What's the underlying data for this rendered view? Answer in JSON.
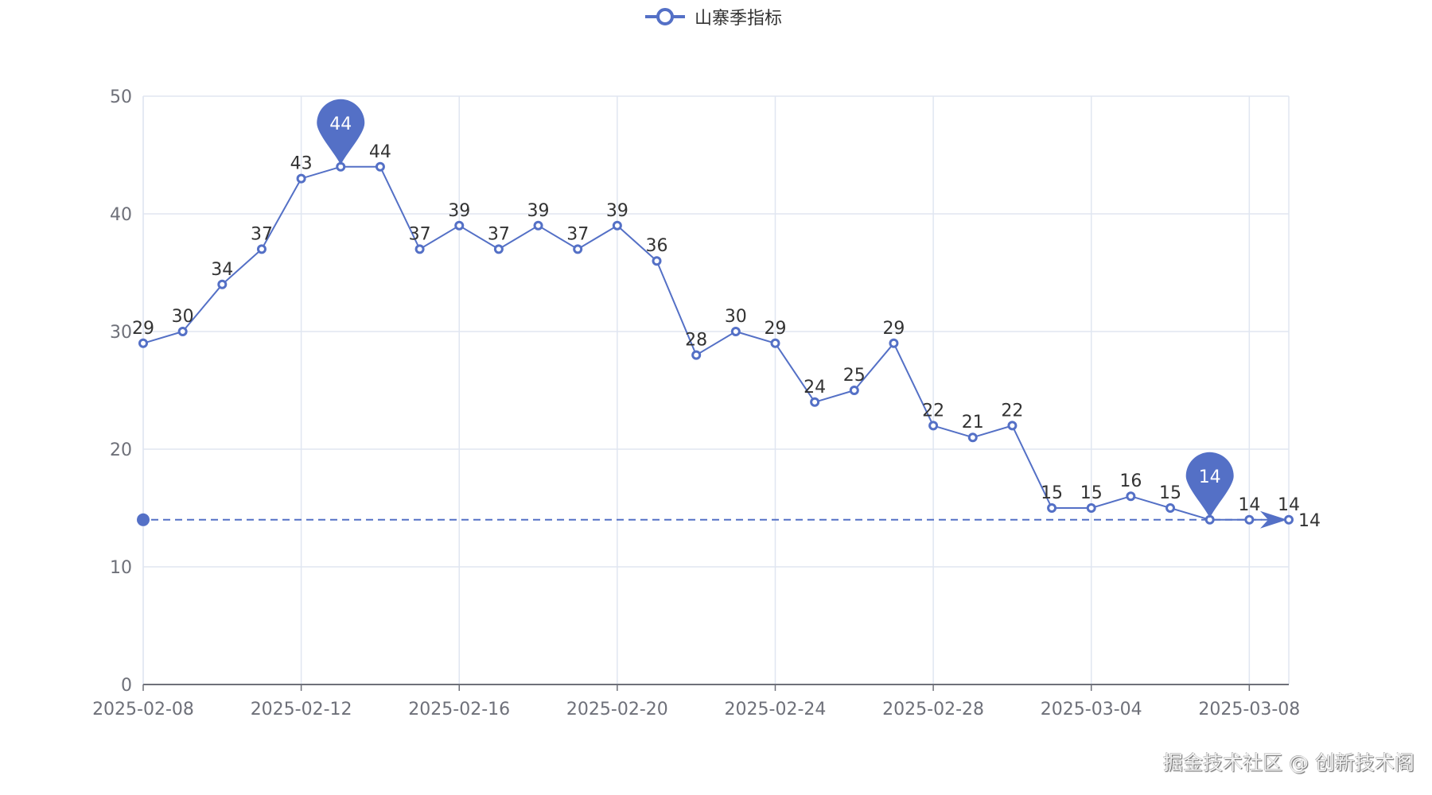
{
  "legend": {
    "label": "山寨季指标",
    "icon": "line-circle-legend-icon"
  },
  "watermark": "掘金技术社区 @ 创新技术阁",
  "colors": {
    "series": "#5470c6",
    "grid": "#e0e6f1",
    "axis": "#6e7079",
    "label": "#333333"
  },
  "chart_data": {
    "type": "line",
    "title": "",
    "xlabel": "",
    "ylabel": "",
    "ylim": [
      0,
      50
    ],
    "yticks": [
      0,
      10,
      20,
      30,
      40,
      50
    ],
    "xtick_labels": [
      "2025-02-08",
      "2025-02-12",
      "2025-02-16",
      "2025-02-20",
      "2025-02-24",
      "2025-02-28",
      "2025-03-04",
      "2025-03-08"
    ],
    "grid": true,
    "legend_position": "top-center",
    "x": [
      "2025-02-08",
      "2025-02-09",
      "2025-02-10",
      "2025-02-11",
      "2025-02-12",
      "2025-02-13",
      "2025-02-14",
      "2025-02-15",
      "2025-02-16",
      "2025-02-17",
      "2025-02-18",
      "2025-02-19",
      "2025-02-20",
      "2025-02-21",
      "2025-02-22",
      "2025-02-23",
      "2025-02-24",
      "2025-02-25",
      "2025-02-26",
      "2025-02-27",
      "2025-02-28",
      "2025-03-01",
      "2025-03-02",
      "2025-03-03",
      "2025-03-04",
      "2025-03-05",
      "2025-03-06",
      "2025-03-07",
      "2025-03-08",
      "2025-03-09"
    ],
    "series": [
      {
        "name": "山寨季指标",
        "values": [
          29,
          30,
          34,
          37,
          43,
          44,
          44,
          37,
          39,
          37,
          39,
          37,
          39,
          36,
          28,
          30,
          29,
          24,
          25,
          29,
          22,
          21,
          22,
          15,
          15,
          16,
          15,
          14,
          14,
          14
        ]
      }
    ],
    "mark_points": [
      {
        "type": "max",
        "label": "44",
        "index": 5,
        "value": 44
      },
      {
        "type": "min",
        "label": "14",
        "index": 27,
        "value": 14
      }
    ],
    "mark_line": {
      "type": "min",
      "value": 14,
      "label": "14",
      "style": "dashed"
    }
  }
}
